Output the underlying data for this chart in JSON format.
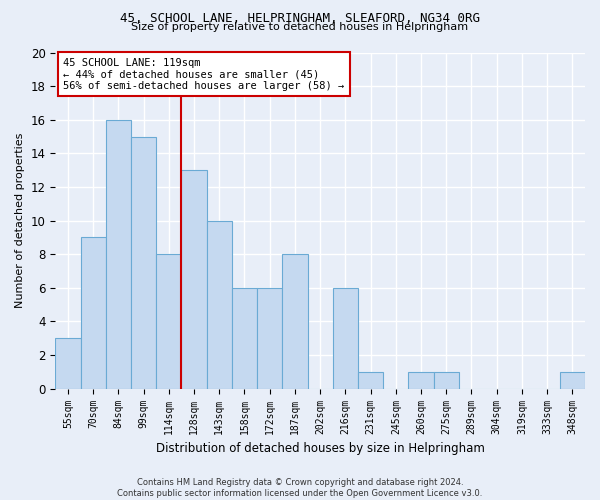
{
  "title1": "45, SCHOOL LANE, HELPRINGHAM, SLEAFORD, NG34 0RG",
  "title2": "Size of property relative to detached houses in Helpringham",
  "xlabel": "Distribution of detached houses by size in Helpringham",
  "ylabel": "Number of detached properties",
  "bar_labels": [
    "55sqm",
    "70sqm",
    "84sqm",
    "99sqm",
    "114sqm",
    "128sqm",
    "143sqm",
    "158sqm",
    "172sqm",
    "187sqm",
    "202sqm",
    "216sqm",
    "231sqm",
    "245sqm",
    "260sqm",
    "275sqm",
    "289sqm",
    "304sqm",
    "319sqm",
    "333sqm",
    "348sqm"
  ],
  "bar_values": [
    3,
    9,
    16,
    15,
    8,
    13,
    10,
    6,
    6,
    8,
    0,
    6,
    1,
    0,
    1,
    1,
    0,
    0,
    0,
    0,
    1
  ],
  "bar_color": "#c5d9f0",
  "bar_edge_color": "#6aaad4",
  "vline_x": 4.5,
  "vline_color": "#cc0000",
  "annotation_text": "45 SCHOOL LANE: 119sqm\n← 44% of detached houses are smaller (45)\n56% of semi-detached houses are larger (58) →",
  "annotation_box_color": "#ffffff",
  "annotation_box_edge": "#cc0000",
  "ylim": [
    0,
    20
  ],
  "yticks": [
    0,
    2,
    4,
    6,
    8,
    10,
    12,
    14,
    16,
    18,
    20
  ],
  "footer1": "Contains HM Land Registry data © Crown copyright and database right 2024.",
  "footer2": "Contains public sector information licensed under the Open Government Licence v3.0.",
  "bg_color": "#e8eef8",
  "grid_color": "#ffffff"
}
